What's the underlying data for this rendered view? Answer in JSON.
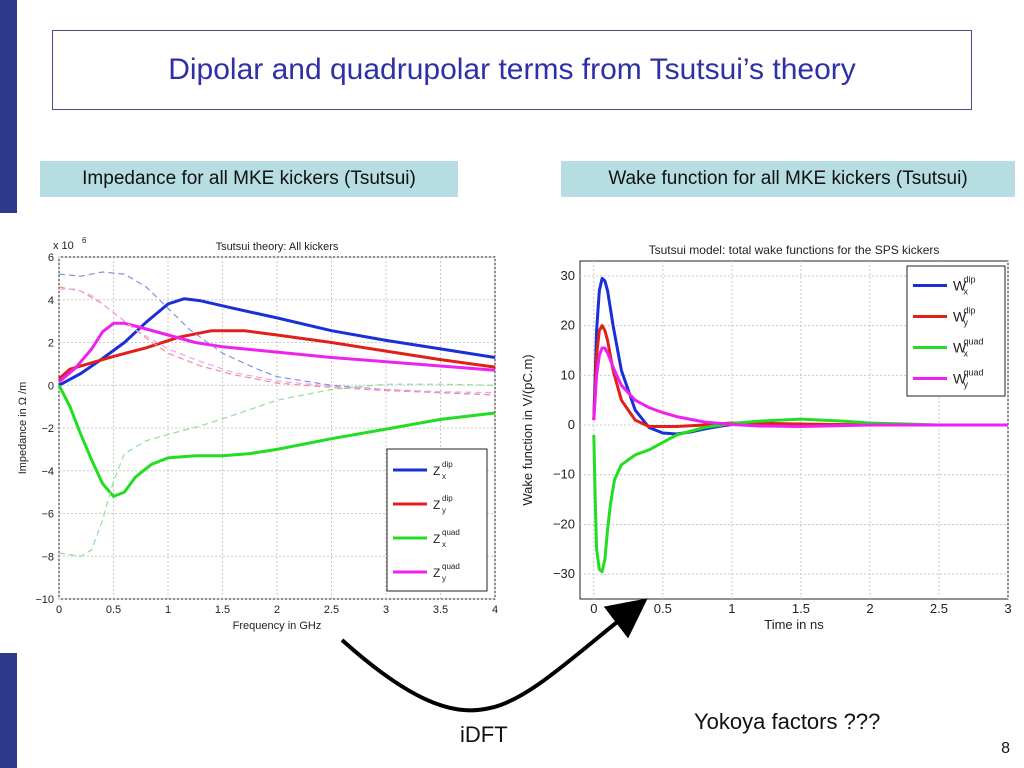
{
  "slide": {
    "title": "Dipolar and quadrupolar terms from Tsutsui’s theory",
    "caption_left": "Impedance for all MKE kickers (Tsutsui)",
    "caption_right": "Wake function for all MKE kickers (Tsutsui)",
    "arrow_label": "iDFT",
    "note": "Yokoya factors ???",
    "page_number": "8",
    "colors": {
      "title": "#2e31a5",
      "caption_bg": "#b5dde2",
      "side_bar": "#2d3a8c"
    }
  },
  "chart_data": [
    {
      "type": "line",
      "title": "Tsutsui theory: All kickers",
      "xlabel": "Frequency in GHz",
      "ylabel": "Impedance in Ω /m",
      "y_multiplier": "x 10",
      "y_exponent": "6",
      "xlim": [
        0,
        4
      ],
      "ylim": [
        -10,
        6
      ],
      "xticks": [
        "0",
        "0.5",
        "1",
        "1.5",
        "2",
        "2.5",
        "3",
        "3.5",
        "4"
      ],
      "yticks": [
        "6",
        "4",
        "2",
        "0",
        "−2",
        "−4",
        "−6",
        "−8",
        "−10"
      ],
      "xtick_values": [
        0,
        0.5,
        1,
        1.5,
        2,
        2.5,
        3,
        3.5,
        4
      ],
      "ytick_values": [
        6,
        4,
        2,
        0,
        -2,
        -4,
        -6,
        -8,
        -10
      ],
      "grid": true,
      "legend_position": "bottom-right",
      "series": [
        {
          "name": "Z",
          "sup": "dip",
          "sub": "x",
          "color": "#1a2fd6",
          "style": "solid",
          "x": [
            0,
            0.2,
            0.4,
            0.6,
            0.8,
            1.0,
            1.15,
            1.3,
            1.6,
            2.0,
            2.5,
            3.0,
            3.5,
            4.0
          ],
          "y": [
            0,
            0.55,
            1.25,
            2.0,
            2.95,
            3.8,
            4.05,
            3.95,
            3.6,
            3.15,
            2.55,
            2.1,
            1.7,
            1.3
          ]
        },
        {
          "name": "Z",
          "sup": "dip",
          "sub": "y",
          "color": "#e0201b",
          "style": "solid",
          "x": [
            0,
            0.1,
            0.3,
            0.5,
            0.8,
            1.1,
            1.4,
            1.7,
            2.0,
            2.5,
            3.0,
            3.5,
            4.0
          ],
          "y": [
            0.3,
            0.75,
            1.05,
            1.35,
            1.75,
            2.25,
            2.55,
            2.55,
            2.35,
            2.0,
            1.6,
            1.2,
            0.85
          ]
        },
        {
          "name": "Z",
          "sup": "quad",
          "sub": "x",
          "color": "#22dd22",
          "style": "solid",
          "x": [
            0,
            0.1,
            0.2,
            0.3,
            0.4,
            0.5,
            0.6,
            0.7,
            0.85,
            1.0,
            1.25,
            1.5,
            1.75,
            2.0,
            2.5,
            3.0,
            3.5,
            4.0
          ],
          "y": [
            0,
            -1.0,
            -2.3,
            -3.5,
            -4.6,
            -5.2,
            -5.0,
            -4.3,
            -3.7,
            -3.4,
            -3.3,
            -3.3,
            -3.2,
            -3.0,
            -2.5,
            -2.05,
            -1.6,
            -1.3
          ]
        },
        {
          "name": "Z",
          "sup": "quad",
          "sub": "y",
          "color": "#ee22ee",
          "style": "solid",
          "x": [
            0,
            0.15,
            0.3,
            0.4,
            0.5,
            0.6,
            0.75,
            1.0,
            1.25,
            1.5,
            2.0,
            2.5,
            3.0,
            3.5,
            4.0
          ],
          "y": [
            0.15,
            0.8,
            1.7,
            2.5,
            2.9,
            2.9,
            2.7,
            2.35,
            2.0,
            1.8,
            1.55,
            1.3,
            1.1,
            0.9,
            0.7
          ]
        },
        {
          "name": "",
          "color": "#8090ee",
          "style": "dashed",
          "x": [
            0,
            0.2,
            0.4,
            0.6,
            0.8,
            1.0,
            1.2,
            1.5,
            1.8,
            2.0,
            2.5,
            3.0,
            3.5,
            4.0
          ],
          "y": [
            5.2,
            5.1,
            5.3,
            5.2,
            4.6,
            3.6,
            2.6,
            1.5,
            0.8,
            0.4,
            0.0,
            -0.2,
            -0.35,
            -0.45
          ]
        },
        {
          "name": "",
          "color": "#f09090",
          "style": "dashed",
          "x": [
            0,
            0.2,
            0.4,
            0.6,
            0.8,
            1.0,
            1.3,
            1.6,
            2.0,
            2.5,
            3.0,
            3.5,
            4.0
          ],
          "y": [
            4.6,
            4.4,
            3.8,
            3.0,
            2.2,
            1.5,
            0.9,
            0.5,
            0.1,
            -0.1,
            -0.25,
            -0.35,
            -0.45
          ]
        },
        {
          "name": "",
          "color": "#f0a0f0",
          "style": "dashed",
          "x": [
            0,
            0.15,
            0.3,
            0.5,
            0.7,
            1.0,
            1.3,
            1.6,
            2.0,
            2.5,
            3.0,
            3.5,
            4.0
          ],
          "y": [
            4.5,
            4.5,
            4.2,
            3.4,
            2.6,
            1.7,
            1.1,
            0.6,
            0.2,
            -0.05,
            -0.2,
            -0.3,
            -0.35
          ]
        },
        {
          "name": "",
          "color": "#90e090",
          "style": "dashed",
          "x": [
            0,
            0.2,
            0.3,
            0.4,
            0.5,
            0.6,
            0.8,
            1.0,
            1.3,
            1.6,
            2.0,
            2.5,
            3.0,
            3.5,
            4.0
          ],
          "y": [
            -7.85,
            -8.0,
            -7.7,
            -6.3,
            -4.5,
            -3.2,
            -2.6,
            -2.3,
            -1.9,
            -1.4,
            -0.7,
            -0.2,
            0.05,
            0.05,
            0.0
          ]
        }
      ]
    },
    {
      "type": "line",
      "title": "Tsutsui model: total wake functions for the SPS kickers",
      "xlabel": "Time in ns",
      "ylabel": "Wake function in V/(pC.m)",
      "xlim": [
        -0.1,
        3
      ],
      "ylim": [
        -35,
        33
      ],
      "xticks": [
        "0",
        "0.5",
        "1",
        "1.5",
        "2",
        "2.5",
        "3"
      ],
      "yticks": [
        "30",
        "20",
        "10",
        "0",
        "−10",
        "−20",
        "−30"
      ],
      "xtick_values": [
        0,
        0.5,
        1,
        1.5,
        2,
        2.5,
        3
      ],
      "ytick_values": [
        30,
        20,
        10,
        0,
        -10,
        -20,
        -30
      ],
      "grid": true,
      "legend_position": "top-right",
      "series": [
        {
          "name": "W",
          "sup": "dip",
          "sub": "x",
          "color": "#1a2fd6",
          "x": [
            0,
            0.02,
            0.04,
            0.06,
            0.08,
            0.1,
            0.14,
            0.2,
            0.3,
            0.4,
            0.5,
            0.6,
            0.7,
            0.8,
            0.9,
            1.0,
            1.2,
            1.5,
            2.0,
            3.0
          ],
          "y": [
            1,
            19,
            27,
            29.5,
            29,
            27,
            20,
            11,
            3,
            -0.5,
            -1.6,
            -1.8,
            -1.4,
            -0.8,
            -0.3,
            0.1,
            0.2,
            0.1,
            0,
            0
          ]
        },
        {
          "name": "W",
          "sup": "dip",
          "sub": "y",
          "color": "#e0201b",
          "x": [
            0,
            0.02,
            0.04,
            0.06,
            0.08,
            0.1,
            0.14,
            0.2,
            0.3,
            0.4,
            0.6,
            0.8,
            1.0,
            1.5,
            2.0,
            3.0
          ],
          "y": [
            1,
            14,
            19,
            20,
            19,
            17,
            11,
            5,
            1,
            -0.3,
            -0.3,
            0,
            0.4,
            0.2,
            0,
            0
          ]
        },
        {
          "name": "W",
          "sup": "quad",
          "sub": "x",
          "color": "#22dd22",
          "x": [
            0,
            0.01,
            0.02,
            0.04,
            0.06,
            0.08,
            0.1,
            0.12,
            0.15,
            0.2,
            0.25,
            0.3,
            0.4,
            0.5,
            0.6,
            0.8,
            1.0,
            1.2,
            1.5,
            1.8,
            2.0,
            2.5,
            3.0
          ],
          "y": [
            -2,
            -15,
            -25,
            -29,
            -29.5,
            -27,
            -21,
            -16,
            -11,
            -8,
            -7,
            -6,
            -5,
            -3.5,
            -2,
            -0.5,
            0.3,
            0.8,
            1.2,
            0.8,
            0.4,
            0,
            0
          ]
        },
        {
          "name": "W",
          "sup": "quad",
          "sub": "y",
          "color": "#ee22ee",
          "x": [
            0,
            0.02,
            0.04,
            0.06,
            0.08,
            0.1,
            0.15,
            0.2,
            0.3,
            0.4,
            0.5,
            0.6,
            0.8,
            1.0,
            1.2,
            1.5,
            2.0,
            3.0
          ],
          "y": [
            1,
            10,
            14,
            15.5,
            15.5,
            14.5,
            11,
            8,
            5,
            3.5,
            2.5,
            1.7,
            0.6,
            0.1,
            -0.2,
            -0.3,
            0,
            0
          ]
        }
      ]
    }
  ]
}
